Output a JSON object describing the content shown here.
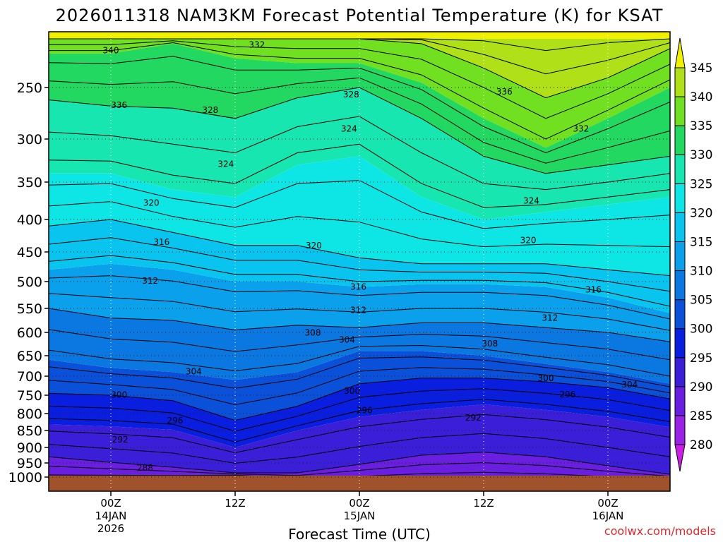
{
  "chart_data": {
    "type": "heatmap",
    "title": "2026011318 NAM3KM Forecast Potential Temperature (K) for KSAT",
    "xlabel": "Forecast Time (UTC)",
    "ylabel": "",
    "credit": "coolwx.com/models",
    "x_ticks": [
      {
        "label": "00Z",
        "sub1": "14JAN",
        "sub2": "2026",
        "hours": 6
      },
      {
        "label": "12Z",
        "sub1": "",
        "sub2": "",
        "hours": 18
      },
      {
        "label": "00Z",
        "sub1": "15JAN",
        "sub2": "",
        "hours": 30
      },
      {
        "label": "12Z",
        "sub1": "",
        "sub2": "",
        "hours": 42
      },
      {
        "label": "00Z",
        "sub1": "16JAN",
        "sub2": "",
        "hours": 54
      }
    ],
    "x_range_hours": [
      0,
      60
    ],
    "y_ticks": [
      250,
      300,
      350,
      400,
      450,
      500,
      550,
      600,
      650,
      700,
      750,
      800,
      850,
      900,
      950,
      1000
    ],
    "y_range_hPa": [
      200,
      1015
    ],
    "colorbar": {
      "levels": [
        280,
        285,
        290,
        295,
        300,
        305,
        310,
        315,
        320,
        325,
        330,
        335,
        340,
        345
      ],
      "colors": [
        "#cc1ee6",
        "#9a22e6",
        "#6a1ee0",
        "#3a1ed8",
        "#0a1ee0",
        "#0a50d8",
        "#0a78e0",
        "#0aa0ec",
        "#0ac4f0",
        "#0ee6e6",
        "#18e6b0",
        "#22d860",
        "#70e020",
        "#b0e018",
        "#f0f000"
      ]
    },
    "contour_labels": [
      {
        "text": "340",
        "hours": 6.0,
        "hPa": 212
      },
      {
        "text": "336",
        "hours": 6.8,
        "hPa": 267
      },
      {
        "text": "332",
        "hours": 20.1,
        "hPa": 206
      },
      {
        "text": "328",
        "hours": 15.6,
        "hPa": 272
      },
      {
        "text": "328",
        "hours": 29.2,
        "hPa": 257
      },
      {
        "text": "324",
        "hours": 17.1,
        "hPa": 329
      },
      {
        "text": "324",
        "hours": 29.0,
        "hPa": 290
      },
      {
        "text": "336",
        "hours": 44.0,
        "hPa": 254
      },
      {
        "text": "332",
        "hours": 51.4,
        "hPa": 290
      },
      {
        "text": "324",
        "hours": 46.6,
        "hPa": 375
      },
      {
        "text": "320",
        "hours": 9.9,
        "hPa": 378
      },
      {
        "text": "316",
        "hours": 10.9,
        "hPa": 435
      },
      {
        "text": "320",
        "hours": 25.6,
        "hPa": 440
      },
      {
        "text": "320",
        "hours": 46.3,
        "hPa": 432
      },
      {
        "text": "312",
        "hours": 9.8,
        "hPa": 499
      },
      {
        "text": "316",
        "hours": 29.9,
        "hPa": 510
      },
      {
        "text": "316",
        "hours": 52.6,
        "hPa": 515
      },
      {
        "text": "312",
        "hours": 29.9,
        "hPa": 554
      },
      {
        "text": "312",
        "hours": 48.4,
        "hPa": 570
      },
      {
        "text": "308",
        "hours": 25.5,
        "hPa": 601
      },
      {
        "text": "304",
        "hours": 28.8,
        "hPa": 616
      },
      {
        "text": "308",
        "hours": 42.6,
        "hPa": 624
      },
      {
        "text": "304",
        "hours": 14.0,
        "hPa": 689
      },
      {
        "text": "300",
        "hours": 48.0,
        "hPa": 706
      },
      {
        "text": "304",
        "hours": 56.1,
        "hPa": 722
      },
      {
        "text": "300",
        "hours": 6.8,
        "hPa": 749
      },
      {
        "text": "300",
        "hours": 29.3,
        "hPa": 739
      },
      {
        "text": "296",
        "hours": 50.1,
        "hPa": 748
      },
      {
        "text": "296",
        "hours": 12.2,
        "hPa": 821
      },
      {
        "text": "296",
        "hours": 30.5,
        "hPa": 791
      },
      {
        "text": "292",
        "hours": 41.0,
        "hPa": 812
      },
      {
        "text": "292",
        "hours": 6.9,
        "hPa": 877
      },
      {
        "text": "288",
        "hours": 9.3,
        "hPa": 968
      }
    ]
  }
}
